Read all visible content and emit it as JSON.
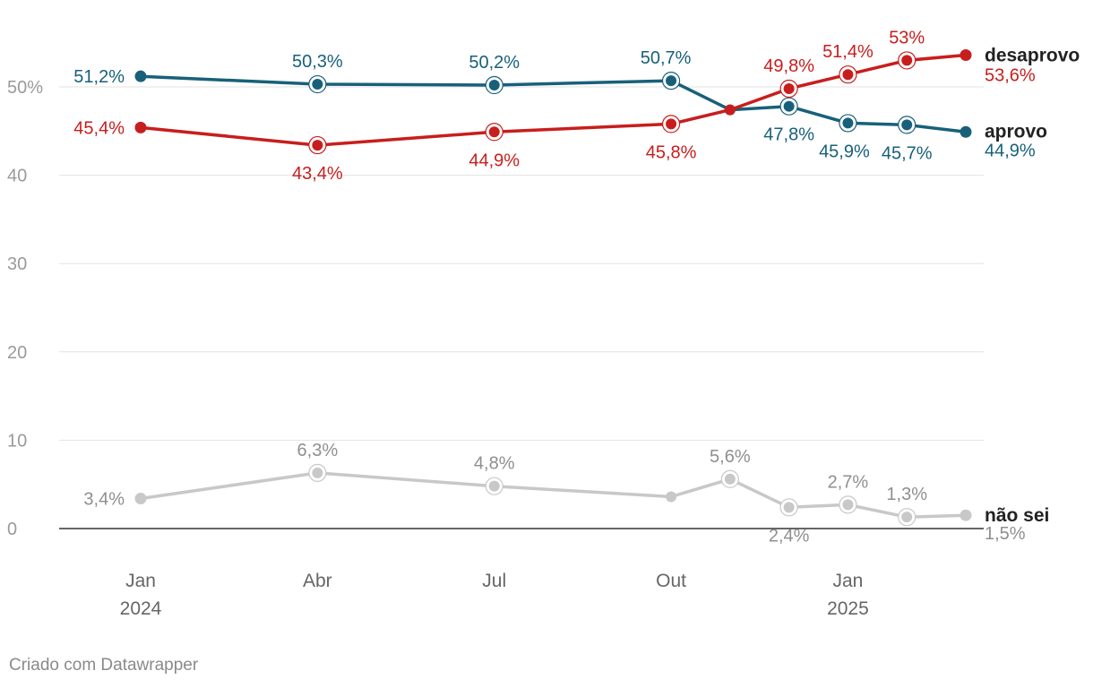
{
  "chart_data": {
    "type": "line",
    "title": "",
    "xlabel": "",
    "ylabel": "",
    "ylim": [
      0,
      55
    ],
    "y_ticks": [
      {
        "value": 0,
        "label": "0"
      },
      {
        "value": 10,
        "label": "10"
      },
      {
        "value": 20,
        "label": "20"
      },
      {
        "value": 30,
        "label": "30"
      },
      {
        "value": 40,
        "label": "40"
      },
      {
        "value": 50,
        "label": "50%"
      }
    ],
    "x_ticks": [
      {
        "date": "2024-01",
        "label": "Jan",
        "sublabel": "2024"
      },
      {
        "date": "2024-04",
        "label": "Abr",
        "sublabel": ""
      },
      {
        "date": "2024-07",
        "label": "Jul",
        "sublabel": ""
      },
      {
        "date": "2024-10",
        "label": "Out",
        "sublabel": ""
      },
      {
        "date": "2025-01",
        "label": "Jan",
        "sublabel": "2025"
      }
    ],
    "x_range": [
      "2024-01",
      "2025-03"
    ],
    "points": [
      "2024-01",
      "2024-04",
      "2024-07",
      "2024-10",
      "2024-11",
      "2024-12",
      "2025-01",
      "2025-02",
      "2025-03"
    ],
    "series": [
      {
        "name": "desaprovo",
        "color": "#c71e1d",
        "values": [
          45.4,
          43.4,
          44.9,
          45.8,
          47.4,
          49.8,
          51.4,
          53.0,
          53.6
        ],
        "labels": [
          "45,4%",
          "43,4%",
          "44,9%",
          "45,8%",
          "",
          "49,8%",
          "51,4%",
          "53%",
          "53,6%"
        ],
        "highlight": [
          false,
          true,
          true,
          true,
          false,
          true,
          true,
          true,
          false
        ]
      },
      {
        "name": "aprovo",
        "color": "#18607a",
        "values": [
          51.2,
          50.3,
          50.2,
          50.7,
          47.4,
          47.8,
          45.9,
          45.7,
          44.9
        ],
        "labels": [
          "51,2%",
          "50,3%",
          "50,2%",
          "50,7%",
          "",
          "47,8%",
          "45,9%",
          "45,7%",
          "44,9%"
        ],
        "highlight": [
          false,
          true,
          true,
          true,
          false,
          true,
          true,
          true,
          false
        ]
      },
      {
        "name": "não sei",
        "color": "#c8c8c8",
        "values": [
          3.4,
          6.3,
          4.8,
          3.6,
          5.6,
          2.4,
          2.7,
          1.3,
          1.5
        ],
        "labels": [
          "3,4%",
          "6,3%",
          "4,8%",
          "",
          "5,6%",
          "2,4%",
          "2,7%",
          "1,3%",
          "1,5%"
        ],
        "highlight": [
          false,
          true,
          true,
          false,
          true,
          true,
          true,
          true,
          false
        ]
      }
    ]
  },
  "footer": {
    "credit": "Criado com Datawrapper"
  }
}
